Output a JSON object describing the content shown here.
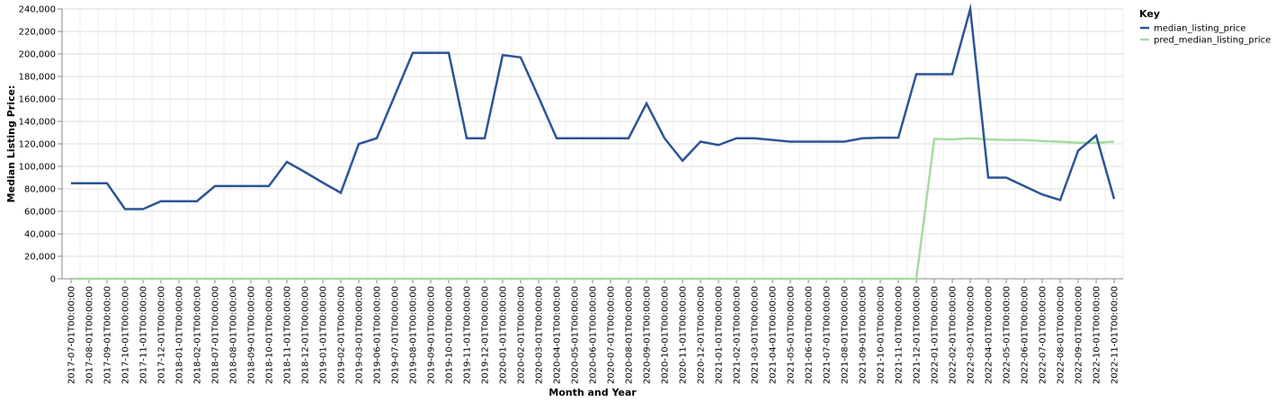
{
  "chart_data": {
    "type": "line",
    "xlabel": "Month and Year",
    "ylabel": "Median Listing Price:",
    "ylim": [
      0,
      240000
    ],
    "yticks": [
      0,
      20000,
      40000,
      60000,
      80000,
      100000,
      120000,
      140000,
      160000,
      180000,
      200000,
      220000,
      240000
    ],
    "ytick_labels": [
      "0",
      "20,000",
      "40,000",
      "60,000",
      "80,000",
      "100,000",
      "120,000",
      "140,000",
      "160,000",
      "180,000",
      "200,000",
      "220,000",
      "240,000"
    ],
    "grid": true,
    "legend": {
      "title": "Key",
      "position": "right"
    },
    "x": [
      "2017-07-01T00:00:00",
      "2017-08-01T00:00:00",
      "2017-09-01T00:00:00",
      "2017-10-01T00:00:00",
      "2017-11-01T00:00:00",
      "2017-12-01T00:00:00",
      "2018-01-01T00:00:00",
      "2018-02-01T00:00:00",
      "2018-07-01T00:00:00",
      "2018-08-01T00:00:00",
      "2018-09-01T00:00:00",
      "2018-10-01T00:00:00",
      "2018-11-01T00:00:00",
      "2018-12-01T00:00:00",
      "2019-01-01T00:00:00",
      "2019-02-01T00:00:00",
      "2019-03-01T00:00:00",
      "2019-06-01T00:00:00",
      "2019-07-01T00:00:00",
      "2019-08-01T00:00:00",
      "2019-09-01T00:00:00",
      "2019-10-01T00:00:00",
      "2019-11-01T00:00:00",
      "2019-12-01T00:00:00",
      "2020-01-01T00:00:00",
      "2020-02-01T00:00:00",
      "2020-03-01T00:00:00",
      "2020-04-01T00:00:00",
      "2020-05-01T00:00:00",
      "2020-06-01T00:00:00",
      "2020-07-01T00:00:00",
      "2020-08-01T00:00:00",
      "2020-09-01T00:00:00",
      "2020-10-01T00:00:00",
      "2020-11-01T00:00:00",
      "2020-12-01T00:00:00",
      "2021-01-01T00:00:00",
      "2021-02-01T00:00:00",
      "2021-03-01T00:00:00",
      "2021-04-01T00:00:00",
      "2021-05-01T00:00:00",
      "2021-06-01T00:00:00",
      "2021-07-01T00:00:00",
      "2021-08-01T00:00:00",
      "2021-09-01T00:00:00",
      "2021-10-01T00:00:00",
      "2021-11-01T00:00:00",
      "2021-12-01T00:00:00",
      "2022-01-01T00:00:00",
      "2022-02-01T00:00:00",
      "2022-03-01T00:00:00",
      "2022-04-01T00:00:00",
      "2022-05-01T00:00:00",
      "2022-06-01T00:00:00",
      "2022-07-01T00:00:00",
      "2022-08-01T00:00:00",
      "2022-09-01T00:00:00",
      "2022-10-01T00:00:00",
      "2022-11-01T00:00:00"
    ],
    "series": [
      {
        "name": "median_listing_price",
        "color": "#2c5596",
        "values": [
          85000,
          85000,
          85000,
          62000,
          62000,
          69000,
          69000,
          69000,
          82500,
          82500,
          82500,
          82500,
          104000,
          95000,
          85500,
          76500,
          120000,
          125000,
          163000,
          201000,
          201000,
          201000,
          125000,
          125000,
          199000,
          197000,
          161500,
          125000,
          125000,
          125000,
          125000,
          125000,
          156000,
          125000,
          105000,
          122000,
          119000,
          125000,
          125000,
          123500,
          122000,
          122000,
          122000,
          122000,
          125000,
          125500,
          125500,
          182000,
          182000,
          182000,
          240000,
          90000,
          90000,
          82500,
          75000,
          70000,
          114000,
          127500,
          71000
        ]
      },
      {
        "name": "pred_median_listing_price",
        "color": "#a6dba0",
        "values": [
          0,
          0,
          0,
          0,
          0,
          0,
          0,
          0,
          0,
          0,
          0,
          0,
          0,
          0,
          0,
          0,
          0,
          0,
          0,
          0,
          0,
          0,
          0,
          0,
          0,
          0,
          0,
          0,
          0,
          0,
          0,
          0,
          0,
          0,
          0,
          0,
          0,
          0,
          0,
          0,
          0,
          0,
          0,
          0,
          0,
          0,
          0,
          0,
          124500,
          124000,
          125000,
          124000,
          123500,
          123500,
          122500,
          122000,
          121000,
          121000,
          122000
        ]
      }
    ]
  }
}
